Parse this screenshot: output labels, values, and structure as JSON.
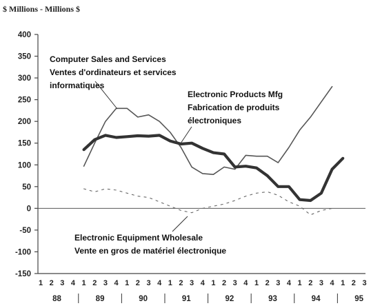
{
  "chart_data": {
    "type": "line",
    "unit_label": "$ Millions - Millions $",
    "ylim": [
      -150,
      400
    ],
    "yticks": [
      400,
      350,
      300,
      250,
      200,
      150,
      100,
      50,
      0,
      -50,
      -100,
      -150
    ],
    "quarter_labels": [
      "1",
      "2",
      "3",
      "4",
      "1",
      "2",
      "3",
      "4",
      "1",
      "2",
      "3",
      "4",
      "1",
      "2",
      "3",
      "4",
      "1",
      "2",
      "3",
      "4",
      "1",
      "2",
      "3",
      "4",
      "1",
      "2",
      "3",
      "4",
      "1",
      "2",
      "3",
      "4"
    ],
    "year_labels": [
      "88",
      "89",
      "90",
      "91",
      "92",
      "93",
      "94",
      "95"
    ],
    "x_start_quarter_index": 4,
    "series": [
      {
        "name": "Computer Sales and Services / Ventes d'ordinateurs et services informatiques",
        "label_lines": [
          "Computer Sales and Services",
          "Ventes d'ordinateurs et services",
          "informatiques"
        ],
        "style": "thin",
        "color": "#555555",
        "values": [
          97,
          150,
          200,
          230,
          230,
          210,
          215,
          200,
          175,
          140,
          95,
          80,
          78,
          95,
          90,
          122,
          120,
          120,
          105,
          140,
          180,
          210,
          245,
          280
        ]
      },
      {
        "name": "Electronic Products Mfg / Fabrication de produits électroniques",
        "label_lines": [
          "Electronic Products Mfg",
          "Fabrication de produits",
          "électroniques"
        ],
        "style": "thick",
        "color": "#333333",
        "values": [
          135,
          158,
          168,
          163,
          165,
          167,
          166,
          168,
          155,
          148,
          150,
          138,
          128,
          125,
          95,
          97,
          93,
          75,
          50,
          50,
          20,
          18,
          35,
          90,
          115
        ]
      },
      {
        "name": "Electronic Equipment Wholesale / Vente en gros de matériel électronique",
        "label_lines": [
          "Electronic Equipment Wholesale",
          "Vente en gros de matériel électronique"
        ],
        "style": "dashed",
        "color": "#666666",
        "values": [
          45,
          38,
          45,
          42,
          35,
          28,
          25,
          15,
          5,
          -5,
          -10,
          0,
          5,
          10,
          18,
          28,
          35,
          38,
          30,
          15,
          5,
          -15,
          -5,
          0
        ]
      }
    ]
  }
}
